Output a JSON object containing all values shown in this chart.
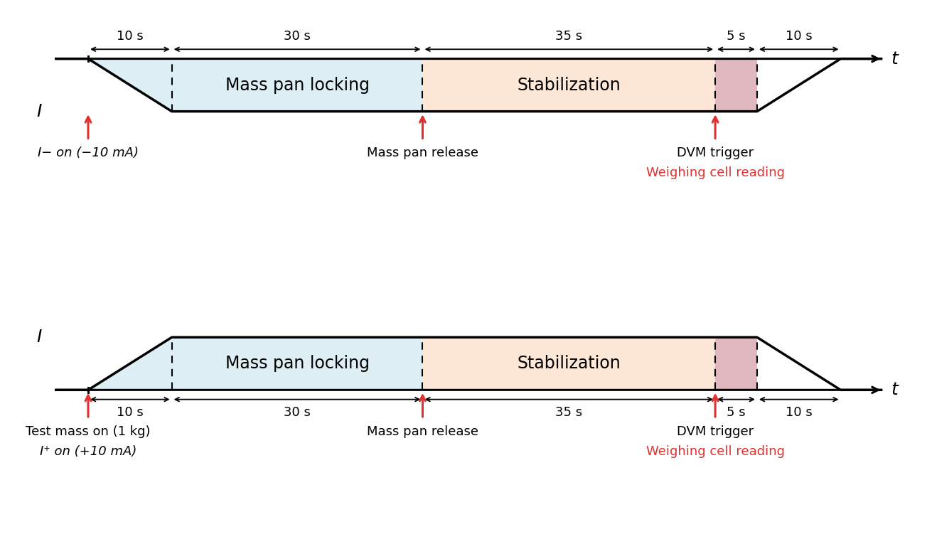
{
  "fig_width": 13.04,
  "fig_height": 7.79,
  "background_color": "#ffffff",
  "timeline": [
    0,
    10,
    40,
    75,
    80,
    90
  ],
  "time_labels": [
    "10 s",
    "30 s",
    "35 s",
    "5 s",
    "10 s"
  ],
  "region_locking_color": "#ddeef5",
  "region_stabilization_color": "#fde8d8",
  "region_dvm_color": "#e0b8c0",
  "signal_line_color": "#000000",
  "arrow_color": "#e03030",
  "text_red": "#e03030",
  "text_black": "#000000",
  "font_size_time": 13,
  "font_size_region": 17,
  "font_size_label": 13,
  "font_size_axis": 18,
  "top_arrows": [
    {
      "x": 0,
      "lines": [
        {
          "text": "I− on (−10 mA)",
          "color": "black",
          "style": "italic_first"
        }
      ]
    },
    {
      "x": 40,
      "lines": [
        {
          "text": "Mass pan release",
          "color": "black",
          "style": "normal"
        }
      ]
    },
    {
      "x": 75,
      "lines": [
        {
          "text": "DVM trigger",
          "color": "black",
          "style": "normal"
        },
        {
          "text": "Weighing cell reading",
          "color": "red",
          "style": "normal"
        }
      ]
    }
  ],
  "bottom_arrows": [
    {
      "x": 0,
      "lines": [
        {
          "text": "Test mass on (1 kg)",
          "color": "black",
          "style": "normal"
        },
        {
          "text": "I⁺ on (+10 mA)",
          "color": "black",
          "style": "italic_first"
        }
      ]
    },
    {
      "x": 40,
      "lines": [
        {
          "text": "Mass pan release",
          "color": "black",
          "style": "normal"
        }
      ]
    },
    {
      "x": 75,
      "lines": [
        {
          "text": "DVM trigger",
          "color": "black",
          "style": "normal"
        },
        {
          "text": "Weighing cell reading",
          "color": "red",
          "style": "normal"
        }
      ]
    }
  ]
}
